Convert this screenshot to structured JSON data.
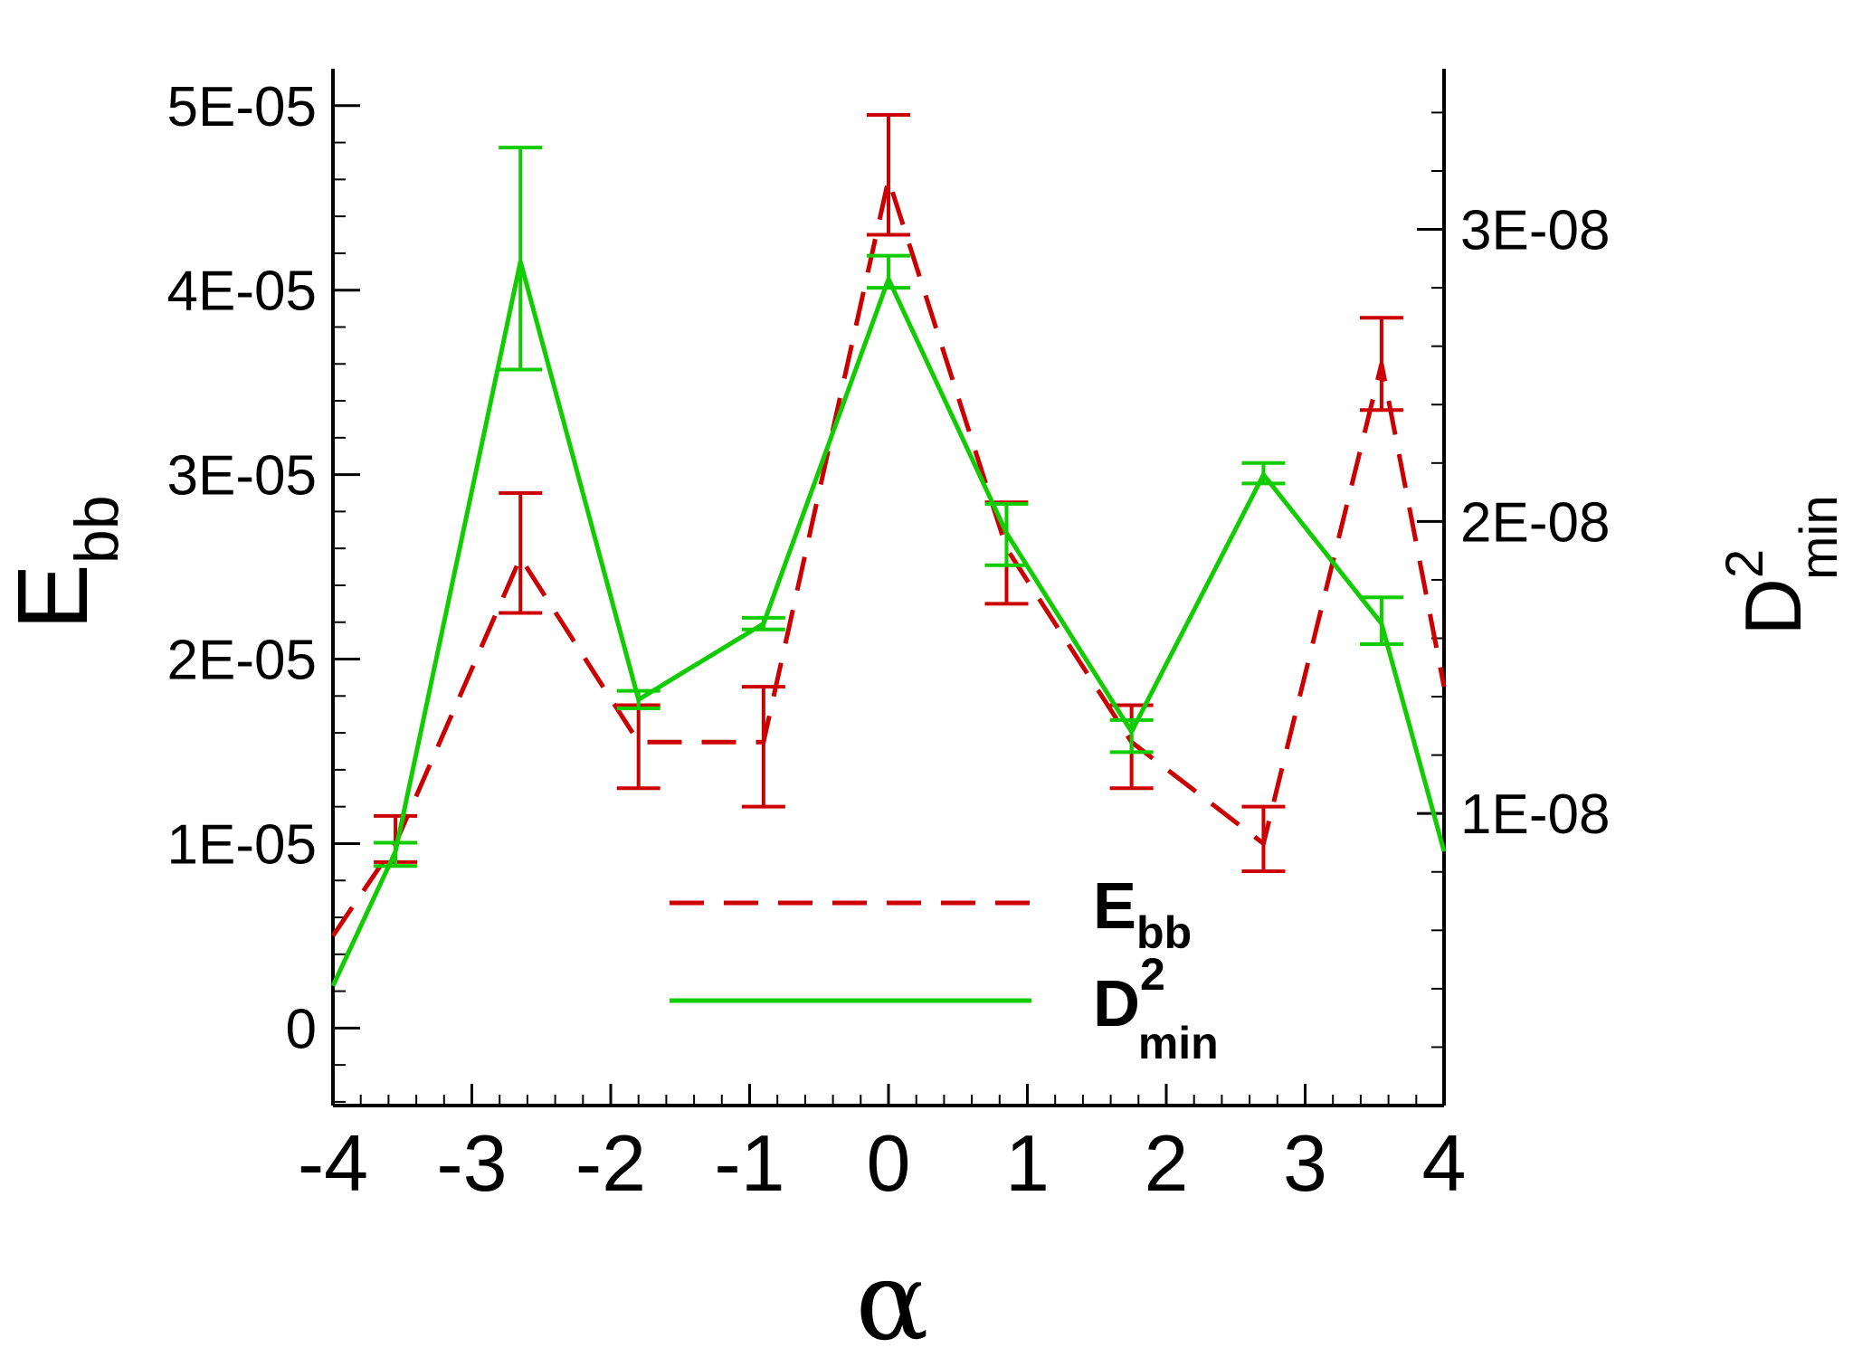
{
  "chart_data": {
    "type": "line",
    "title": "",
    "x_axis": {
      "label": "α",
      "range": [
        -4,
        4
      ],
      "ticks": [
        -4,
        -3,
        -2,
        -1,
        0,
        1,
        2,
        3,
        4
      ],
      "tick_labels": [
        "-4",
        "-3",
        "-2",
        "-1",
        "0",
        "1",
        "2",
        "3",
        "4"
      ]
    },
    "y_left_axis": {
      "label_main": "E",
      "label_sub": "bb",
      "range": [
        -4.2e-06,
        5.2e-05
      ],
      "ticks": [
        0,
        1e-05,
        2e-05,
        3e-05,
        4e-05,
        5e-05
      ],
      "tick_labels": [
        "0",
        "1E-05",
        "2E-05",
        "3E-05",
        "4E-05",
        "5E-05"
      ]
    },
    "y_right_axis": {
      "label_main": "D",
      "label_sup": "2",
      "label_sub": "min",
      "range": [
        0,
        3.55e-08
      ],
      "ticks": [
        1e-08,
        2e-08,
        3e-08
      ],
      "tick_labels": [
        "1E-08",
        "2E-08",
        "3E-08"
      ]
    },
    "grid": false,
    "legend_position": "bottom-center",
    "series": [
      {
        "name": "E",
        "name_sub": "bb",
        "axis": "left",
        "style": "dashed",
        "color": "#cc0000",
        "x": [
          -4.0,
          -3.55,
          -2.65,
          -1.8,
          -0.9,
          0.0,
          0.85,
          1.75,
          2.7,
          3.55,
          4.0
        ],
        "y": [
          5e-06,
          1e-05,
          2.55e-05,
          1.55e-05,
          1.55e-05,
          4.6e-05,
          2.6e-05,
          1.55e-05,
          1e-05,
          3.6e-05,
          1.85e-05
        ],
        "error_low": [
          null,
          9e-06,
          2.25e-05,
          1.3e-05,
          1.2e-05,
          4.3e-05,
          2.3e-05,
          1.3e-05,
          8.5e-06,
          3.35e-05,
          null
        ],
        "error_high": [
          null,
          1.15e-05,
          2.9e-05,
          1.75e-05,
          1.85e-05,
          4.95e-05,
          2.85e-05,
          1.75e-05,
          1.2e-05,
          3.85e-05,
          null
        ]
      },
      {
        "name": "D",
        "name_sup": "2",
        "name_sub": "min",
        "axis": "right",
        "style": "solid",
        "color": "#11cc00",
        "x": [
          -4.0,
          -3.55,
          -2.65,
          -1.8,
          -0.9,
          0.0,
          0.85,
          1.75,
          2.7,
          3.55,
          4.0
        ],
        "y": [
          4.1e-09,
          8.7e-09,
          2.89e-08,
          1.39e-08,
          1.65e-08,
          2.83e-08,
          1.96e-08,
          1.28e-08,
          2.16e-08,
          1.65e-08,
          8.7e-09
        ],
        "error_low": [
          null,
          8.2e-09,
          2.52e-08,
          1.36e-08,
          1.63e-08,
          2.8e-08,
          1.85e-08,
          1.21e-08,
          2.13e-08,
          1.58e-08,
          null
        ],
        "error_high": [
          null,
          9e-09,
          3.28e-08,
          1.42e-08,
          1.67e-08,
          2.91e-08,
          2.06e-08,
          1.32e-08,
          2.2e-08,
          1.74e-08,
          null
        ]
      }
    ]
  }
}
